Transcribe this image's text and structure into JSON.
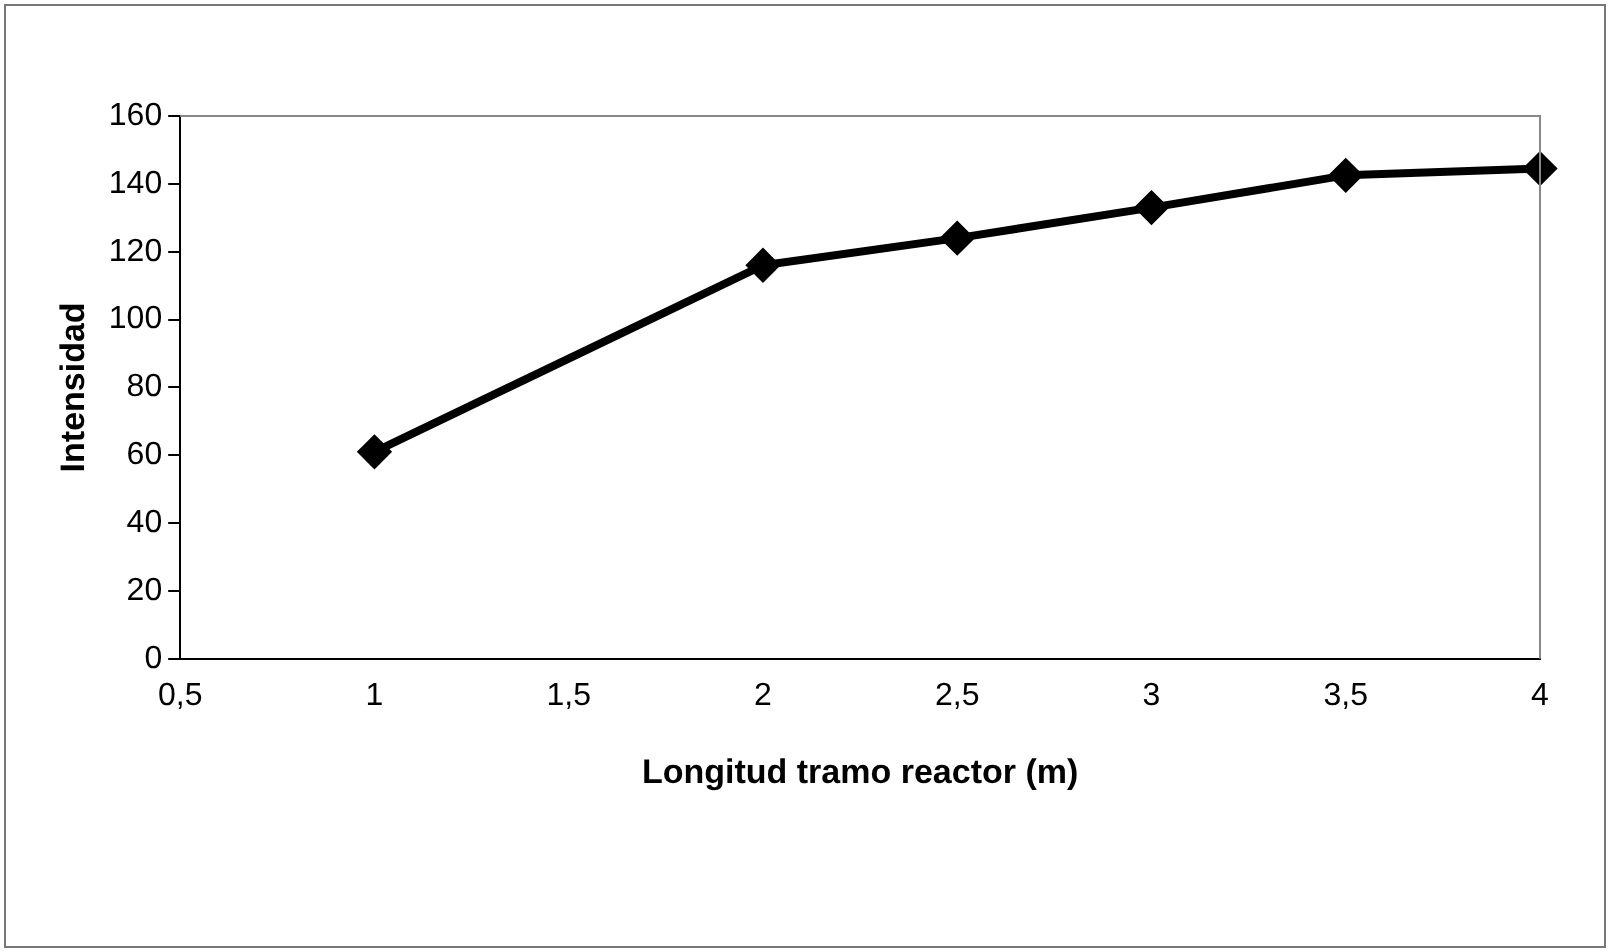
{
  "chart_data": {
    "type": "line",
    "xlabel": "Longitud tramo reactor (m)",
    "ylabel": "Intensidad",
    "categories": [
      "0,5",
      "1",
      "1,5",
      "2",
      "2,5",
      "3",
      "3,5",
      "4"
    ],
    "series": [
      {
        "color": "#000000",
        "values": [
          null,
          61,
          null,
          116,
          124,
          133,
          142.5,
          144.5
        ]
      }
    ],
    "ylim": [
      0,
      160
    ],
    "yticks": [
      0,
      20,
      40,
      60,
      80,
      100,
      120,
      140,
      160
    ],
    "grid": false,
    "legend": false,
    "marker": "diamond",
    "line_style": "solid"
  }
}
